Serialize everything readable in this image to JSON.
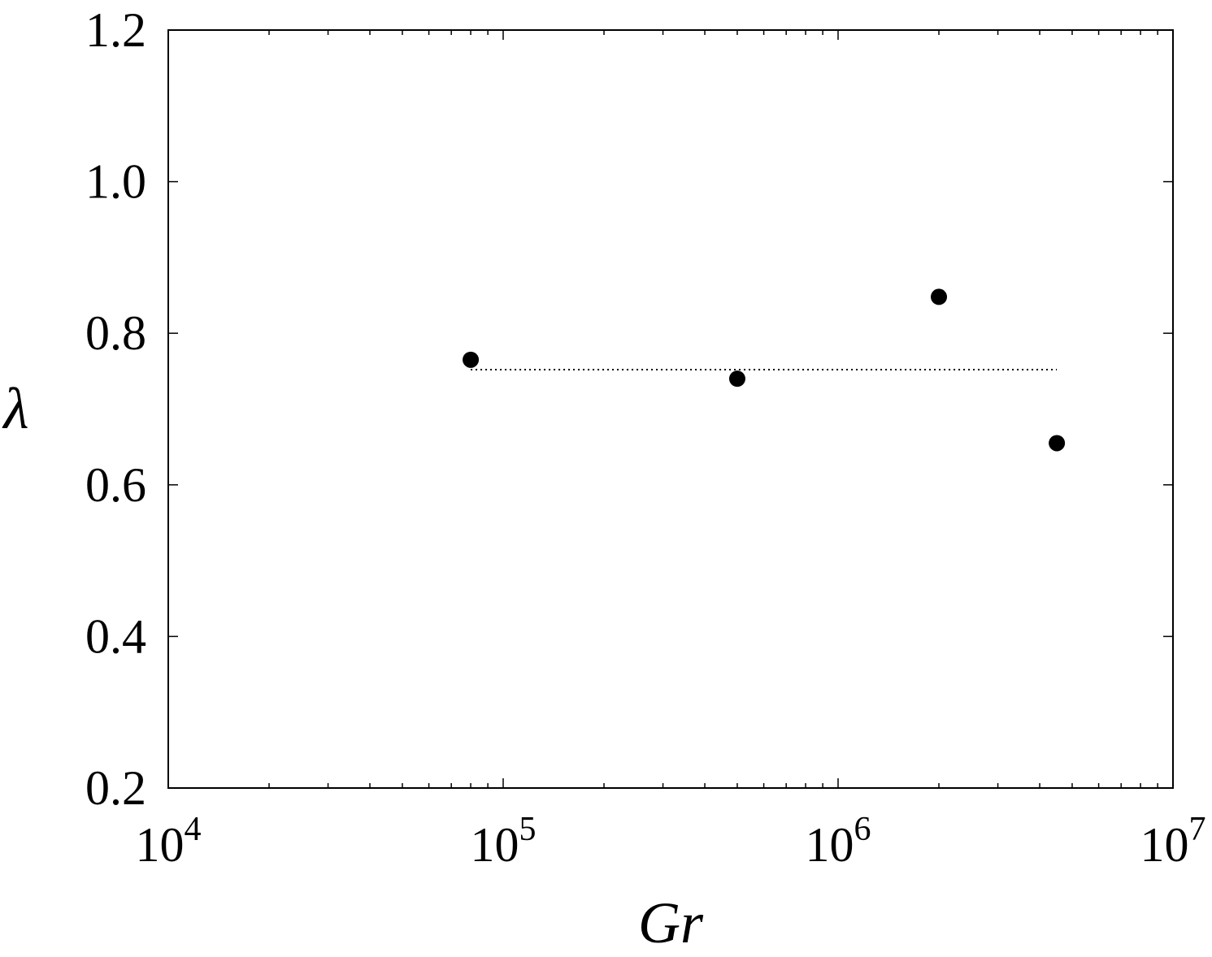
{
  "chart_data": {
    "type": "scatter",
    "title": "",
    "xlabel": "Gr",
    "ylabel": "λ",
    "x_scale": "log",
    "xlim": [
      10000,
      10000000
    ],
    "ylim": [
      0.2,
      1.2
    ],
    "x_ticks": [
      {
        "value": 10000,
        "base": "10",
        "exp": "4"
      },
      {
        "value": 100000,
        "base": "10",
        "exp": "5"
      },
      {
        "value": 1000000,
        "base": "10",
        "exp": "6"
      },
      {
        "value": 10000000,
        "base": "10",
        "exp": "7"
      }
    ],
    "y_ticks": [
      {
        "value": 0.2,
        "label": "0.2"
      },
      {
        "value": 0.4,
        "label": "0.4"
      },
      {
        "value": 0.6,
        "label": "0.6"
      },
      {
        "value": 0.8,
        "label": "0.8"
      },
      {
        "value": 1.0,
        "label": "1.0"
      },
      {
        "value": 1.2,
        "label": "1.2"
      }
    ],
    "grid": false,
    "series": [
      {
        "marker": "filled-circle",
        "color": "#000000",
        "points": [
          {
            "x": 80000,
            "y": 0.765
          },
          {
            "x": 500000,
            "y": 0.74
          },
          {
            "x": 2000000,
            "y": 0.848
          },
          {
            "x": 4500000,
            "y": 0.655
          }
        ]
      }
    ],
    "reference_line": {
      "style": "dotted",
      "color": "#000000",
      "y": 0.752,
      "x_start": 80000,
      "x_end": 4500000
    }
  }
}
